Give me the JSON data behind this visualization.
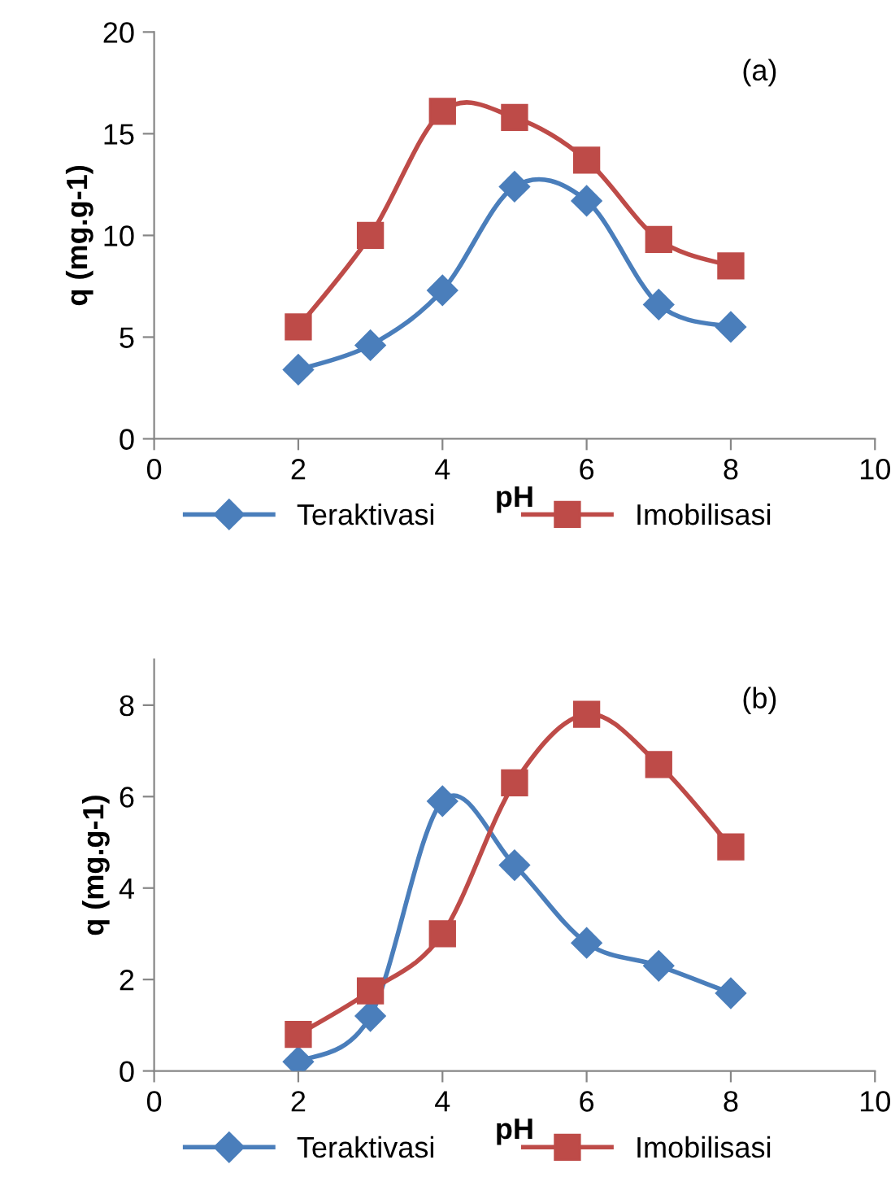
{
  "chart_data": [
    {
      "type": "line",
      "xlabel": "pH",
      "ylabel": "q (mg.g-1)",
      "annotations": [
        "(a)"
      ],
      "x": [
        2,
        3,
        4,
        5,
        6,
        7,
        8
      ],
      "xlim": [
        0,
        10
      ],
      "xticks": [
        0,
        2,
        4,
        6,
        8,
        10
      ],
      "ylim": [
        0,
        20
      ],
      "yticks": [
        0,
        5,
        10,
        15,
        20
      ],
      "grid": false,
      "legend": "bottom",
      "series": [
        {
          "name": "Teraktivasi",
          "color": "#4a7ebb",
          "marker": "diamond",
          "values": [
            3.4,
            4.6,
            7.3,
            12.4,
            11.7,
            6.6,
            5.5
          ]
        },
        {
          "name": "Imobilisasi",
          "color": "#be4b48",
          "marker": "square",
          "values": [
            5.5,
            10.0,
            16.1,
            15.8,
            13.7,
            9.8,
            8.5
          ]
        }
      ]
    },
    {
      "type": "line",
      "xlabel": "pH",
      "ylabel": "q (mg.g-1)",
      "annotations": [
        "(b)"
      ],
      "x": [
        2,
        3,
        4,
        5,
        6,
        7,
        8
      ],
      "xlim": [
        0,
        10
      ],
      "xticks": [
        0,
        2,
        4,
        6,
        8,
        10
      ],
      "ylim": [
        0,
        9
      ],
      "yticks": [
        0,
        2,
        4,
        6,
        8
      ],
      "grid": false,
      "legend": "bottom",
      "series": [
        {
          "name": "Teraktivasi",
          "color": "#4a7ebb",
          "marker": "diamond",
          "values": [
            0.2,
            1.2,
            5.9,
            4.5,
            2.8,
            2.3,
            1.7
          ]
        },
        {
          "name": "Imobilisasi",
          "color": "#be4b48",
          "marker": "square",
          "values": [
            0.8,
            1.75,
            3.0,
            6.3,
            7.8,
            6.7,
            4.9
          ]
        }
      ]
    }
  ]
}
